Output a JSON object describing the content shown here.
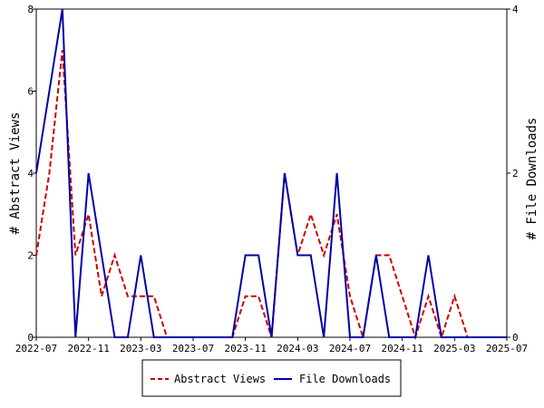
{
  "chart_data": {
    "type": "line",
    "x": [
      "2022-07",
      "2022-08",
      "2022-09",
      "2022-10",
      "2022-11",
      "2022-12",
      "2023-01",
      "2023-02",
      "2023-03",
      "2023-04",
      "2023-05",
      "2023-06",
      "2023-07",
      "2023-08",
      "2023-09",
      "2023-10",
      "2023-11",
      "2023-12",
      "2024-01",
      "2024-02",
      "2024-03",
      "2024-04",
      "2024-05",
      "2024-06",
      "2024-07",
      "2024-08",
      "2024-09",
      "2024-10",
      "2024-11",
      "2024-12",
      "2025-01",
      "2025-02",
      "2025-03",
      "2025-04",
      "2025-05",
      "2025-06",
      "2025-07"
    ],
    "series": [
      {
        "name": "Abstract Views",
        "axis": "left",
        "style": "dashed",
        "color": "#cc0000",
        "values": [
          2,
          4,
          7,
          2,
          3,
          1,
          2,
          1,
          1,
          1,
          0,
          0,
          0,
          0,
          0,
          0,
          1,
          1,
          0,
          4,
          2,
          3,
          2,
          3,
          1,
          0,
          2,
          2,
          1,
          0,
          1,
          0,
          1,
          0,
          0,
          0,
          0
        ]
      },
      {
        "name": "File Downloads",
        "axis": "right",
        "style": "solid",
        "color": "#0000aa",
        "values": [
          2,
          3,
          4,
          0,
          2,
          1,
          0,
          0,
          1,
          0,
          0,
          0,
          0,
          0,
          0,
          0,
          1,
          1,
          0,
          2,
          1,
          1,
          0,
          2,
          0,
          0,
          1,
          0,
          0,
          0,
          1,
          0,
          0,
          0,
          0,
          0,
          0
        ]
      }
    ],
    "x_ticks": [
      "2022-07",
      "2022-11",
      "2023-03",
      "2023-07",
      "2023-11",
      "2024-03",
      "2024-07",
      "2024-11",
      "2025-03",
      "2025-07"
    ],
    "ylabel_left": "# Abstract Views",
    "ylabel_right": "# File Downloads",
    "ylim_left": [
      0,
      8
    ],
    "ylim_right": [
      0,
      4
    ],
    "yticks_left": [
      0,
      2,
      4,
      6,
      8
    ],
    "yticks_right": [
      0,
      2,
      4
    ],
    "grid": false,
    "legend_placement": "bottom-center"
  }
}
